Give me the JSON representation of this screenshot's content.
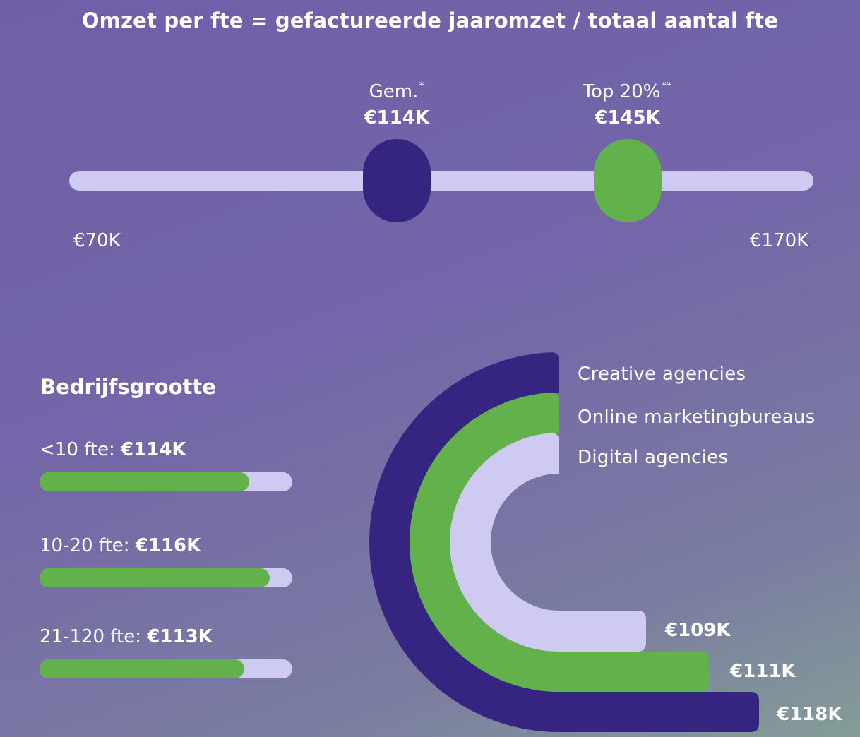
{
  "chart_data": [
    {
      "type": "range",
      "title": "Omzet per fte = gefactureerde jaaromzet / totaal aantal fte",
      "range": {
        "min": 70,
        "max": 170,
        "min_label": "€70K",
        "max_label": "€170K"
      },
      "markers": [
        {
          "name": "Gem.",
          "sup": "*",
          "value": 114,
          "value_label": "€114K",
          "color": "#352480"
        },
        {
          "name": "Top 20%",
          "sup": "**",
          "value": 145,
          "value_label": "€145K",
          "color": "#63b14a"
        }
      ]
    },
    {
      "type": "bar",
      "title": "Bedrijfsgrootte",
      "categories": [
        "<10 fte:",
        "10-20 fte:",
        "21-120 fte:"
      ],
      "values": [
        114,
        116,
        113
      ],
      "value_labels": [
        "€114K",
        "€116K",
        "€113K"
      ],
      "bar_fill_fraction": [
        0.83,
        0.91,
        0.81
      ],
      "colors": {
        "fill": "#63b14a",
        "track": "#cfcaf1"
      }
    },
    {
      "type": "radial-bar",
      "series": [
        {
          "name": "Creative agencies",
          "value": 118,
          "value_label": "€118K",
          "color": "#352480"
        },
        {
          "name": "Online marketingbureaus",
          "value": 111,
          "value_label": "€111K",
          "color": "#63b14a"
        },
        {
          "name": "Digital agencies",
          "value": 109,
          "value_label": "€109K",
          "color": "#cfcaf1"
        }
      ]
    }
  ]
}
